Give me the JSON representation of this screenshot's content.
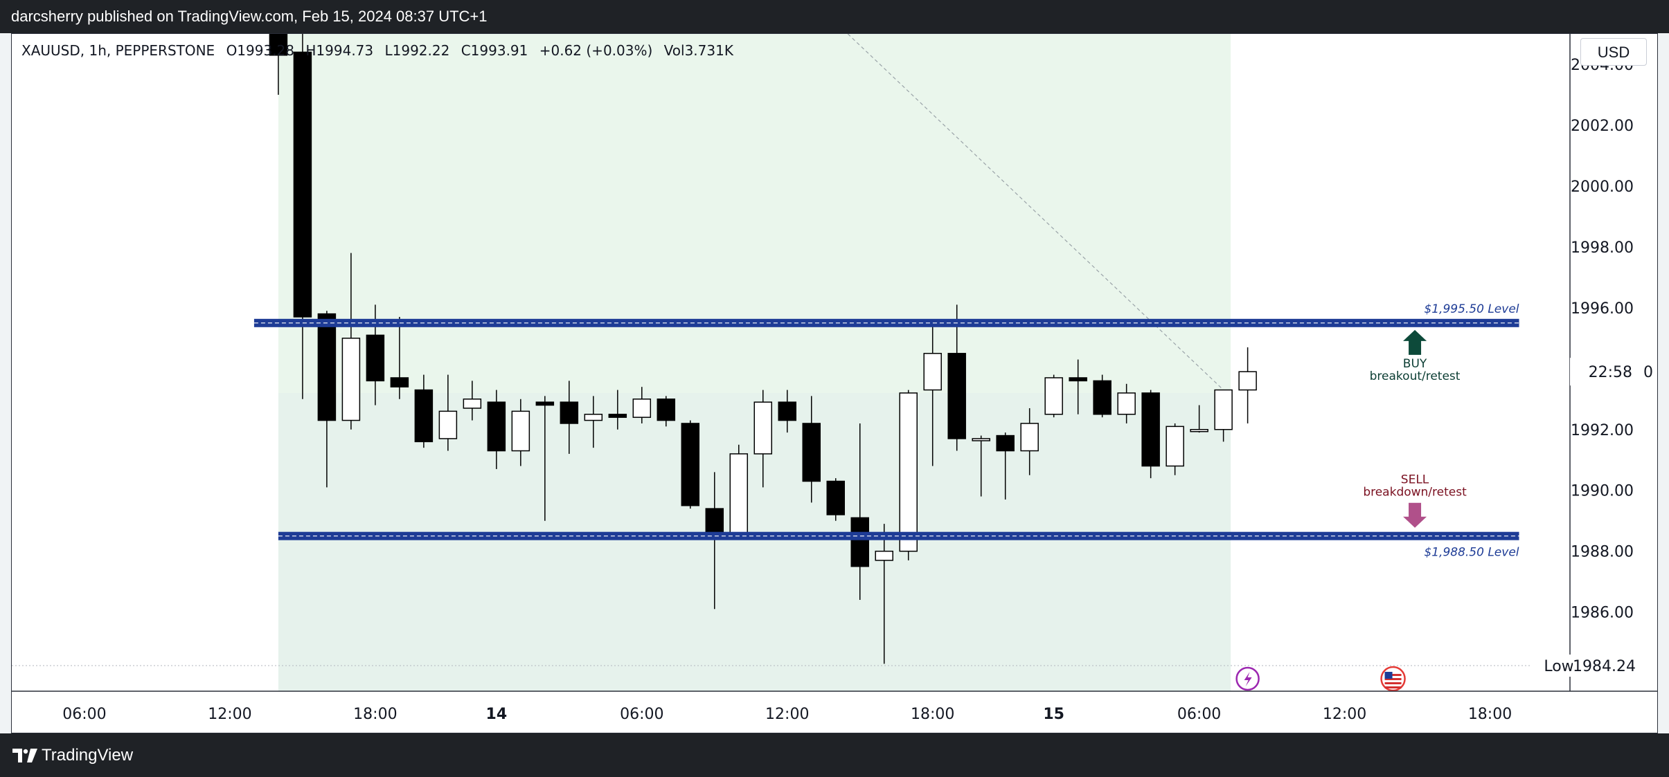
{
  "header": {
    "title": "darcsherry published on TradingView.com, Feb 15, 2024 08:37 UTC+1"
  },
  "legend": {
    "symbol": "XAUUSD, 1h, PEPPERSTONE",
    "open": "O1993.28",
    "high": "H1994.73",
    "low": "L1992.22",
    "close": "C1993.91",
    "change": "+0.62 (+0.03%)",
    "volume": "Vol3.731K"
  },
  "price_scale": {
    "currency": "USD",
    "countdown": "22:58",
    "low_label": "Low",
    "low_value": "1984.24"
  },
  "footer": {
    "brand": "TradingView"
  },
  "colors": {
    "level_line": "#1e3c96",
    "buy_arrow": "#0d4a3a",
    "sell_arrow": "#b0508a",
    "sell_text": "#7a1020",
    "zone": "#e8f4ea",
    "level_label": "#1e3c96"
  },
  "chart_data": {
    "type": "candlestick",
    "symbol": "XAUUSD",
    "timeframe": "1h",
    "ylim": [
      1983.4,
      2005.0
    ],
    "y_ticks": [
      "2004.00",
      "2002.00",
      "2000.00",
      "1998.00",
      "1996.00",
      "1992.00",
      "1990.00",
      "1988.00",
      "1986.00"
    ],
    "x_ticks": [
      {
        "label": "06:00",
        "x": -8,
        "bold": false
      },
      {
        "label": "12:00",
        "x": -2,
        "bold": false
      },
      {
        "label": "18:00",
        "x": 4,
        "bold": false
      },
      {
        "label": "14",
        "x": 9,
        "bold": true
      },
      {
        "label": "06:00",
        "x": 15,
        "bold": false
      },
      {
        "label": "12:00",
        "x": 21,
        "bold": false
      },
      {
        "label": "18:00",
        "x": 27,
        "bold": false
      },
      {
        "label": "15",
        "x": 32,
        "bold": true
      },
      {
        "label": "06:00",
        "x": 38,
        "bold": false
      },
      {
        "label": "12:00",
        "x": 44,
        "bold": false
      },
      {
        "label": "18:00",
        "x": 50,
        "bold": false
      }
    ],
    "x_range": [
      -11,
      53.3
    ],
    "candles": [
      {
        "x": 0,
        "o": 2010.0,
        "h": 2012.0,
        "l": 2003.0,
        "c": 2004.3
      },
      {
        "x": 1,
        "o": 2004.4,
        "h": 2005.5,
        "l": 1993.0,
        "c": 1995.7
      },
      {
        "x": 2,
        "o": 1995.8,
        "h": 1995.9,
        "l": 1990.1,
        "c": 1992.3
      },
      {
        "x": 3,
        "o": 1992.3,
        "h": 1997.8,
        "l": 1992.0,
        "c": 1995.0
      },
      {
        "x": 4,
        "o": 1995.1,
        "h": 1996.1,
        "l": 1992.8,
        "c": 1993.6
      },
      {
        "x": 5,
        "o": 1993.7,
        "h": 1995.7,
        "l": 1993.0,
        "c": 1993.4
      },
      {
        "x": 6,
        "o": 1993.3,
        "h": 1993.8,
        "l": 1991.4,
        "c": 1991.6
      },
      {
        "x": 7,
        "o": 1991.7,
        "h": 1993.8,
        "l": 1991.3,
        "c": 1992.6
      },
      {
        "x": 8,
        "o": 1992.7,
        "h": 1993.6,
        "l": 1992.3,
        "c": 1993.0
      },
      {
        "x": 9,
        "o": 1992.9,
        "h": 1993.3,
        "l": 1990.7,
        "c": 1991.3
      },
      {
        "x": 10,
        "o": 1991.3,
        "h": 1993.0,
        "l": 1990.8,
        "c": 1992.6
      },
      {
        "x": 11,
        "o": 1992.9,
        "h": 1993.1,
        "l": 1989.0,
        "c": 1992.8
      },
      {
        "x": 12,
        "o": 1992.9,
        "h": 1993.6,
        "l": 1991.2,
        "c": 1992.2
      },
      {
        "x": 13,
        "o": 1992.3,
        "h": 1993.1,
        "l": 1991.4,
        "c": 1992.5
      },
      {
        "x": 14,
        "o": 1992.5,
        "h": 1993.3,
        "l": 1992.0,
        "c": 1992.4
      },
      {
        "x": 15,
        "o": 1992.4,
        "h": 1993.4,
        "l": 1992.2,
        "c": 1993.0
      },
      {
        "x": 16,
        "o": 1993.0,
        "h": 1993.1,
        "l": 1992.1,
        "c": 1992.3
      },
      {
        "x": 17,
        "o": 1992.2,
        "h": 1992.3,
        "l": 1989.4,
        "c": 1989.5
      },
      {
        "x": 18,
        "o": 1989.4,
        "h": 1990.6,
        "l": 1986.1,
        "c": 1988.5
      },
      {
        "x": 19,
        "o": 1988.5,
        "h": 1991.5,
        "l": 1988.4,
        "c": 1991.2
      },
      {
        "x": 20,
        "o": 1991.2,
        "h": 1993.3,
        "l": 1990.1,
        "c": 1992.9
      },
      {
        "x": 21,
        "o": 1992.9,
        "h": 1993.3,
        "l": 1991.9,
        "c": 1992.3
      },
      {
        "x": 22,
        "o": 1992.2,
        "h": 1993.1,
        "l": 1989.6,
        "c": 1990.3
      },
      {
        "x": 23,
        "o": 1990.3,
        "h": 1990.4,
        "l": 1989.0,
        "c": 1989.2
      },
      {
        "x": 24,
        "o": 1989.1,
        "h": 1992.2,
        "l": 1986.4,
        "c": 1987.5
      },
      {
        "x": 25,
        "o": 1987.7,
        "h": 1988.9,
        "l": 1984.3,
        "c": 1988.0
      },
      {
        "x": 26,
        "o": 1988.0,
        "h": 1993.3,
        "l": 1987.7,
        "c": 1993.2
      },
      {
        "x": 27,
        "o": 1993.3,
        "h": 1995.4,
        "l": 1990.8,
        "c": 1994.5
      },
      {
        "x": 28,
        "o": 1994.5,
        "h": 1996.1,
        "l": 1991.3,
        "c": 1991.7
      },
      {
        "x": 29,
        "o": 1991.7,
        "h": 1991.8,
        "l": 1989.8,
        "c": 1991.7
      },
      {
        "x": 30,
        "o": 1991.8,
        "h": 1991.9,
        "l": 1989.7,
        "c": 1991.3
      },
      {
        "x": 31,
        "o": 1991.3,
        "h": 1992.7,
        "l": 1990.5,
        "c": 1992.2
      },
      {
        "x": 32,
        "o": 1992.5,
        "h": 1993.8,
        "l": 1992.4,
        "c": 1993.7
      },
      {
        "x": 33,
        "o": 1993.7,
        "h": 1994.3,
        "l": 1992.5,
        "c": 1993.6
      },
      {
        "x": 34,
        "o": 1993.6,
        "h": 1993.8,
        "l": 1992.4,
        "c": 1992.5
      },
      {
        "x": 35,
        "o": 1992.5,
        "h": 1993.5,
        "l": 1992.2,
        "c": 1993.2
      },
      {
        "x": 36,
        "o": 1993.2,
        "h": 1993.3,
        "l": 1990.4,
        "c": 1990.8
      },
      {
        "x": 37,
        "o": 1990.8,
        "h": 1992.2,
        "l": 1990.5,
        "c": 1992.1
      },
      {
        "x": 38,
        "o": 1992.0,
        "h": 1992.8,
        "l": 1991.9,
        "c": 1992.0
      },
      {
        "x": 39,
        "o": 1992.0,
        "h": 1993.3,
        "l": 1991.6,
        "c": 1993.3
      },
      {
        "x": 40,
        "o": 1993.3,
        "h": 1994.7,
        "l": 1992.2,
        "c": 1993.9
      }
    ],
    "levels": [
      {
        "price": 1995.5,
        "label": "$1,995.50 Level",
        "x_start": -1
      },
      {
        "price": 1988.5,
        "label": "$1,988.50 Level",
        "x_start": 0
      }
    ],
    "zone": {
      "x_start": 0,
      "x_end": 39.3,
      "top": 2005.0,
      "split": 1993.2,
      "bottom": 1983.4
    },
    "signals": [
      {
        "type": "buy",
        "title": "BUY",
        "subtitle": "breakout/retest",
        "x": 46.9
      },
      {
        "type": "sell",
        "title": "SELL",
        "subtitle": "breakdown/retest",
        "x": 46.9
      }
    ],
    "low_marker": 1984.24,
    "trend_line": {
      "x1": 23.5,
      "y1": 2005.0,
      "x2": 39.0,
      "y2": 1993.3
    }
  }
}
